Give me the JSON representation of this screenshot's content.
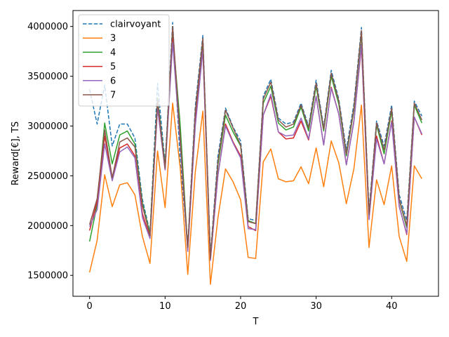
{
  "chart_data": {
    "type": "line",
    "title": "",
    "xlabel": "T",
    "ylabel": "Reward[€], TS",
    "xlim": [
      -2.2,
      46.2
    ],
    "ylim": [
      1290000,
      4160000
    ],
    "xticks": [
      0,
      10,
      20,
      30,
      40
    ],
    "yticks": [
      1500000,
      2000000,
      2500000,
      3000000,
      3500000,
      4000000
    ],
    "grid": false,
    "legend_position": "upper-left",
    "x": [
      0,
      1,
      2,
      3,
      4,
      5,
      6,
      7,
      8,
      9,
      10,
      11,
      12,
      13,
      14,
      15,
      16,
      17,
      18,
      19,
      20,
      21,
      22,
      23,
      24,
      25,
      26,
      27,
      28,
      29,
      30,
      31,
      32,
      33,
      34,
      35,
      36,
      37,
      38,
      39,
      40,
      41,
      42,
      43,
      44
    ],
    "series": [
      {
        "name": "clairvoyant",
        "color": "#1f77b4",
        "dashed": true,
        "values": [
          3370000,
          3020000,
          3410000,
          2800000,
          3020000,
          3020000,
          2880000,
          2260000,
          1930000,
          3430000,
          2620000,
          4040000,
          2650000,
          1800000,
          3200000,
          3910000,
          1700000,
          2700000,
          3180000,
          2990000,
          2850000,
          2070000,
          2050000,
          3300000,
          3470000,
          3080000,
          3020000,
          3040000,
          3230000,
          3000000,
          3460000,
          2990000,
          3560000,
          3270000,
          2760000,
          3220000,
          3990000,
          2150000,
          3050000,
          2800000,
          3210000,
          2310000,
          2050000,
          3250000,
          3100000
        ]
      },
      {
        "name": "3",
        "color": "#ff7f0e",
        "dashed": false,
        "values": [
          1530000,
          1850000,
          2510000,
          2190000,
          2410000,
          2430000,
          2310000,
          1890000,
          1620000,
          2750000,
          2180000,
          3230000,
          2580000,
          1510000,
          2540000,
          3150000,
          1410000,
          2080000,
          2570000,
          2440000,
          2260000,
          1680000,
          1670000,
          2640000,
          2770000,
          2470000,
          2440000,
          2450000,
          2590000,
          2420000,
          2780000,
          2390000,
          2850000,
          2630000,
          2220000,
          2570000,
          3210000,
          1780000,
          2460000,
          2210000,
          2600000,
          1890000,
          1640000,
          2600000,
          2470000
        ]
      },
      {
        "name": "4",
        "color": "#2ca02c",
        "dashed": false,
        "values": [
          1840000,
          2210000,
          3030000,
          2620000,
          2910000,
          2950000,
          2820000,
          2220000,
          1920000,
          3280000,
          2600000,
          3930000,
          3010000,
          1770000,
          3110000,
          3840000,
          1670000,
          2610000,
          3110000,
          2940000,
          2800000,
          2050000,
          2020000,
          3230000,
          3400000,
          3030000,
          2960000,
          2990000,
          3190000,
          2950000,
          3400000,
          2950000,
          3500000,
          3220000,
          2700000,
          3160000,
          3930000,
          2100000,
          3010000,
          2720000,
          3150000,
          2260000,
          1980000,
          3210000,
          3030000
        ]
      },
      {
        "name": "5",
        "color": "#d62728",
        "dashed": false,
        "values": [
          1950000,
          2240000,
          2900000,
          2470000,
          2780000,
          2820000,
          2700000,
          2120000,
          1880000,
          3190000,
          2560000,
          3880000,
          2840000,
          1760000,
          3040000,
          3770000,
          1660000,
          2510000,
          3020000,
          2840000,
          2700000,
          1990000,
          1950000,
          3110000,
          3300000,
          2940000,
          2870000,
          2880000,
          3050000,
          2860000,
          3300000,
          2810000,
          3390000,
          3120000,
          2610000,
          3050000,
          3800000,
          2070000,
          2900000,
          2620000,
          3050000,
          2200000,
          1910000,
          3090000,
          2910000
        ]
      },
      {
        "name": "6",
        "color": "#9467bd",
        "dashed": false,
        "values": [
          1990000,
          2160000,
          2820000,
          2450000,
          2740000,
          2790000,
          2680000,
          2080000,
          1870000,
          3190000,
          2560000,
          3840000,
          2830000,
          1740000,
          3000000,
          3760000,
          1650000,
          2510000,
          3000000,
          2830000,
          2680000,
          1970000,
          1960000,
          3110000,
          3320000,
          2940000,
          2900000,
          2910000,
          3080000,
          2870000,
          3300000,
          2810000,
          3380000,
          3120000,
          2610000,
          3040000,
          3820000,
          2060000,
          2870000,
          2620000,
          3040000,
          2190000,
          1920000,
          3090000,
          2920000
        ]
      },
      {
        "name": "7",
        "color": "#8c564b",
        "dashed": false,
        "values": [
          2010000,
          2270000,
          2960000,
          2480000,
          2840000,
          2880000,
          2790000,
          2200000,
          1900000,
          3260000,
          2580000,
          4000000,
          2880000,
          1780000,
          3150000,
          3880000,
          1670000,
          2650000,
          3160000,
          2980000,
          2810000,
          2040000,
          2020000,
          3270000,
          3440000,
          3060000,
          2990000,
          3020000,
          3210000,
          2980000,
          3430000,
          2970000,
          3530000,
          3250000,
          2720000,
          3180000,
          3960000,
          2110000,
          3030000,
          2760000,
          3180000,
          2270000,
          2000000,
          3230000,
          3060000
        ]
      }
    ]
  }
}
